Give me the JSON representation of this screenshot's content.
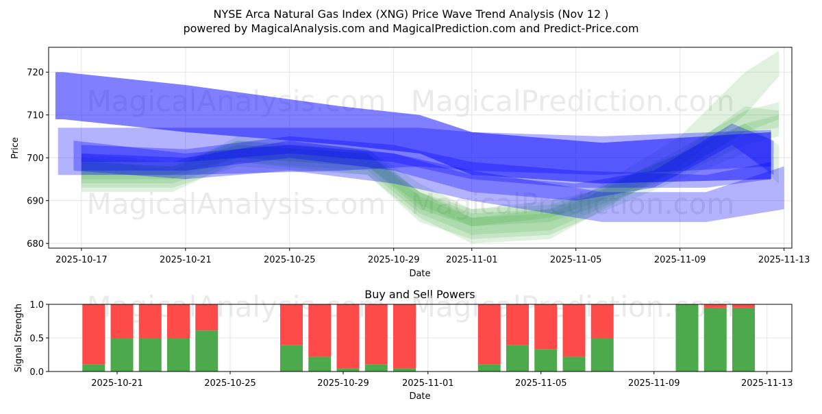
{
  "chart_data": [
    {
      "type": "area",
      "title": "NYSE Arca Natural Gas Index (XNG) Price Wave Trend Analysis (Nov 12 )",
      "subtitle": "powered by MagicalAnalysis.com and MagicalPrediction.com and Predict-Price.com",
      "xlabel": "Date",
      "ylabel": "Price",
      "ylim": [
        678.9,
        725.8
      ],
      "xlim_days_from_2025_10_17": [
        -1.26,
        27.3
      ],
      "grid": true,
      "x_ticks": [
        {
          "day": 0,
          "label": "2025-10-17"
        },
        {
          "day": 4,
          "label": "2025-10-21"
        },
        {
          "day": 8,
          "label": "2025-10-25"
        },
        {
          "day": 12,
          "label": "2025-10-29"
        },
        {
          "day": 15,
          "label": "2025-11-01"
        },
        {
          "day": 19,
          "label": "2025-11-05"
        },
        {
          "day": 23,
          "label": "2025-11-09"
        },
        {
          "day": 27,
          "label": "2025-11-13"
        }
      ],
      "y_ticks": [
        680,
        690,
        700,
        710,
        720
      ],
      "blue_bands": [
        {
          "points": [
            [
              -1,
              709,
              720
            ],
            [
              -0.7,
              709,
              720
            ],
            [
              4,
              706,
              717
            ],
            [
              10,
              703,
              712
            ],
            [
              13,
              701,
              710
            ],
            [
              15,
              696,
              706
            ],
            [
              20,
              694,
              703.5
            ],
            [
              26.5,
              695,
              706
            ]
          ]
        },
        {
          "points": [
            [
              -0.9,
              696,
              707
            ],
            [
              4,
              696,
              707
            ],
            [
              10,
              697,
              707
            ],
            [
              13,
              698,
              707
            ],
            [
              15,
              697,
              706
            ],
            [
              20,
              696,
              705
            ],
            [
              26.5,
              698,
              706.5
            ]
          ]
        },
        {
          "points": [
            [
              -0.3,
              697,
              704
            ],
            [
              4,
              695,
              701
            ],
            [
              8,
              697,
              703
            ],
            [
              12,
              694,
              701
            ],
            [
              15,
              690,
              697
            ],
            [
              20,
              685,
              692
            ],
            [
              24,
              685,
              692
            ],
            [
              27,
              688,
              698
            ]
          ]
        },
        {
          "points": [
            [
              0,
              699,
              703
            ],
            [
              4,
              699,
              702
            ],
            [
              8,
              701,
              705
            ],
            [
              12,
              699,
              703
            ],
            [
              15,
              695,
              699
            ],
            [
              19,
              693,
              697
            ],
            [
              24,
              693,
              696
            ],
            [
              26.5,
              695,
              699
            ]
          ]
        },
        {
          "points": [
            [
              0,
              697,
              701
            ],
            [
              4,
              697,
              700
            ],
            [
              8,
              700,
              704
            ],
            [
              12,
              697,
              701
            ],
            [
              15,
              692,
              696
            ],
            [
              19,
              690,
              694
            ],
            [
              22,
              693,
              697
            ],
            [
              25,
              703,
              708
            ],
            [
              26.6,
              696,
              704
            ]
          ]
        }
      ],
      "green_bands": [
        {
          "points": [
            [
              0,
              692,
              700
            ],
            [
              3.5,
              692,
              697
            ],
            [
              6,
              699,
              705
            ],
            [
              11,
              696,
              702
            ],
            [
              13,
              686,
              692
            ],
            [
              15,
              680,
              687
            ],
            [
              18,
              681,
              688
            ],
            [
              19.5,
              686,
              692
            ],
            [
              23,
              698,
              705
            ],
            [
              25.5,
              710,
              720
            ],
            [
              26.8,
              719,
              725
            ]
          ]
        },
        {
          "points": [
            [
              0,
              694,
              699
            ],
            [
              3.5,
              694,
              698
            ],
            [
              6,
              699,
              704
            ],
            [
              11,
              697,
              701
            ],
            [
              13,
              687,
              692
            ],
            [
              15,
              682,
              686
            ],
            [
              18,
              683,
              687
            ],
            [
              19.5,
              687,
              691
            ],
            [
              23,
              697,
              702
            ],
            [
              25.5,
              706,
              711
            ],
            [
              26.8,
              709,
              713
            ]
          ]
        },
        {
          "points": [
            [
              0,
              695,
              701
            ],
            [
              3.5,
              695,
              699
            ],
            [
              6,
              700,
              704
            ],
            [
              11,
              698,
              702
            ],
            [
              13,
              689,
              694
            ],
            [
              15,
              684,
              688
            ],
            [
              18,
              685,
              689
            ],
            [
              19.5,
              688,
              692
            ],
            [
              23,
              696,
              701
            ],
            [
              25.5,
              703,
              708
            ],
            [
              26.8,
              705,
              710
            ]
          ]
        },
        {
          "points": [
            [
              0,
              693,
              699
            ],
            [
              3.5,
              693,
              698
            ],
            [
              6,
              698,
              703
            ],
            [
              11,
              696,
              701
            ],
            [
              13,
              685,
              691
            ],
            [
              15,
              681,
              686
            ],
            [
              18,
              682,
              688
            ],
            [
              19.5,
              686,
              691
            ],
            [
              23,
              695,
              701
            ],
            [
              25.5,
              701,
              708
            ],
            [
              26.8,
              694,
              703
            ]
          ]
        },
        {
          "points": [
            [
              0,
              696,
              700
            ],
            [
              3.5,
              696,
              699
            ],
            [
              6,
              700,
              703
            ],
            [
              11,
              698,
              701
            ],
            [
              13,
              688,
              692
            ],
            [
              15,
              684,
              688
            ],
            [
              18,
              686,
              690
            ],
            [
              19.5,
              689,
              692
            ],
            [
              23,
              697,
              701
            ],
            [
              25.5,
              706,
              712
            ],
            [
              26.8,
              707,
              711
            ]
          ]
        }
      ]
    },
    {
      "type": "bar",
      "title": "Buy and Sell Powers",
      "xlabel": "Date",
      "ylabel": "Signal Strength",
      "ylim": [
        0,
        1.0
      ],
      "y_ticks": [
        "0.0",
        "0.5",
        "1.0"
      ],
      "grid": true,
      "x_ticks": [
        {
          "day": 4,
          "label": "2025-10-21"
        },
        {
          "day": 8,
          "label": "2025-10-25"
        },
        {
          "day": 12,
          "label": "2025-10-29"
        },
        {
          "day": 15,
          "label": "2025-11-01"
        },
        {
          "day": 19,
          "label": "2025-11-05"
        },
        {
          "day": 23,
          "label": "2025-11-09"
        },
        {
          "day": 27,
          "label": "2025-11-13"
        }
      ],
      "categories": [
        "2025-10-20",
        "2025-10-21",
        "2025-10-22",
        "2025-10-23",
        "2025-10-24",
        "2025-10-27",
        "2025-10-28",
        "2025-10-29",
        "2025-10-30",
        "2025-10-31",
        "2025-11-03",
        "2025-11-04",
        "2025-11-05",
        "2025-11-06",
        "2025-11-07",
        "2025-11-10",
        "2025-11-11",
        "2025-11-12"
      ],
      "days": [
        3,
        4,
        5,
        6,
        7,
        10,
        11,
        12,
        13,
        14,
        17,
        18,
        19,
        20,
        21,
        24,
        25,
        26
      ],
      "series": [
        {
          "name": "Buy",
          "color": "#4caa4c",
          "values": [
            0.11,
            0.5,
            0.5,
            0.5,
            0.61,
            0.39,
            0.22,
            0.05,
            0.11,
            0.05,
            0.11,
            0.39,
            0.33,
            0.22,
            0.5,
            1.0,
            0.95,
            0.95
          ]
        },
        {
          "name": "Sell",
          "color": "#ff4a4a",
          "values": [
            0.89,
            0.5,
            0.5,
            0.5,
            0.39,
            0.61,
            0.78,
            0.95,
            0.89,
            0.95,
            0.89,
            0.61,
            0.67,
            0.78,
            0.5,
            0.0,
            0.05,
            0.05
          ]
        }
      ]
    }
  ],
  "watermark": {
    "left": "MagicalAnalysis.com",
    "right": "MagicalPrediction.com"
  },
  "colors": {
    "blue": "#0000ff",
    "green": "#2ca02c",
    "buy": "#4caa4c",
    "sell": "#ff4a4a"
  }
}
